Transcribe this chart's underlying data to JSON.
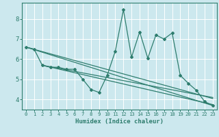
{
  "xlabel": "Humidex (Indice chaleur)",
  "xlim": [
    -0.5,
    23.5
  ],
  "ylim": [
    3.5,
    8.8
  ],
  "yticks": [
    4,
    5,
    6,
    7,
    8
  ],
  "xticks": [
    0,
    1,
    2,
    3,
    4,
    5,
    6,
    7,
    8,
    9,
    10,
    11,
    12,
    13,
    14,
    15,
    16,
    17,
    18,
    19,
    20,
    21,
    22,
    23
  ],
  "background_color": "#cce8ee",
  "grid_color": "#ffffff",
  "line_color": "#2e7d6e",
  "series_main": {
    "x": [
      0,
      1,
      2,
      3,
      4,
      5,
      6,
      7,
      8,
      9,
      10,
      11,
      12,
      13,
      14,
      15,
      16,
      17,
      18,
      19,
      20,
      21,
      22,
      23
    ],
    "y": [
      6.6,
      6.5,
      5.7,
      5.6,
      5.6,
      5.5,
      5.5,
      5.0,
      4.5,
      4.35,
      5.2,
      6.4,
      8.45,
      6.1,
      7.35,
      6.05,
      7.2,
      7.0,
      7.3,
      5.2,
      4.8,
      4.45,
      3.9,
      3.7
    ]
  },
  "trend_lines": [
    {
      "x": [
        0,
        23
      ],
      "y": [
        6.6,
        3.7
      ]
    },
    {
      "x": [
        0,
        23
      ],
      "y": [
        6.6,
        4.05
      ]
    },
    {
      "x": [
        2,
        23
      ],
      "y": [
        5.7,
        3.75
      ]
    },
    {
      "x": [
        2,
        23
      ],
      "y": [
        5.7,
        4.1
      ]
    }
  ]
}
